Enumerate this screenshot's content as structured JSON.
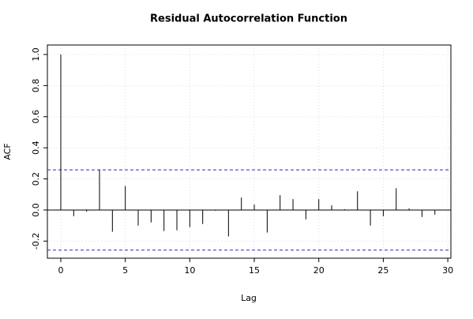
{
  "chart_data": {
    "type": "acf",
    "title": "Residual Autocorrelation Function",
    "x_label": "Lag",
    "y_label": "ACF",
    "x": [
      0,
      1,
      2,
      3,
      4,
      5,
      6,
      7,
      8,
      9,
      10,
      11,
      12,
      13,
      14,
      15,
      16,
      17,
      18,
      19,
      20,
      21,
      22,
      23,
      24,
      25,
      26,
      27,
      28,
      29
    ],
    "values": [
      1.0,
      -0.04,
      -0.01,
      0.26,
      -0.14,
      0.155,
      -0.1,
      -0.08,
      -0.135,
      -0.13,
      -0.11,
      -0.09,
      -0.005,
      -0.17,
      0.08,
      0.035,
      -0.145,
      0.095,
      0.07,
      -0.06,
      0.07,
      0.03,
      0.005,
      0.12,
      -0.1,
      -0.04,
      0.14,
      0.01,
      -0.045,
      -0.03
    ],
    "color": "#000000",
    "confidence_bounds": [
      0.258,
      -0.258
    ],
    "confidence_color": "#2b2bb8",
    "xlim": [
      -1.04,
      30.24
    ],
    "ylim": [
      -0.31,
      1.061
    ],
    "xticks": [
      0,
      5,
      10,
      15,
      20,
      25,
      30
    ],
    "yticks": [
      -0.2,
      {
        "value": 0,
        "label": "0.0"
      },
      0.2,
      0.4,
      0.6,
      0.8,
      {
        "value": 1,
        "label": "1.0"
      }
    ],
    "grid": true
  }
}
